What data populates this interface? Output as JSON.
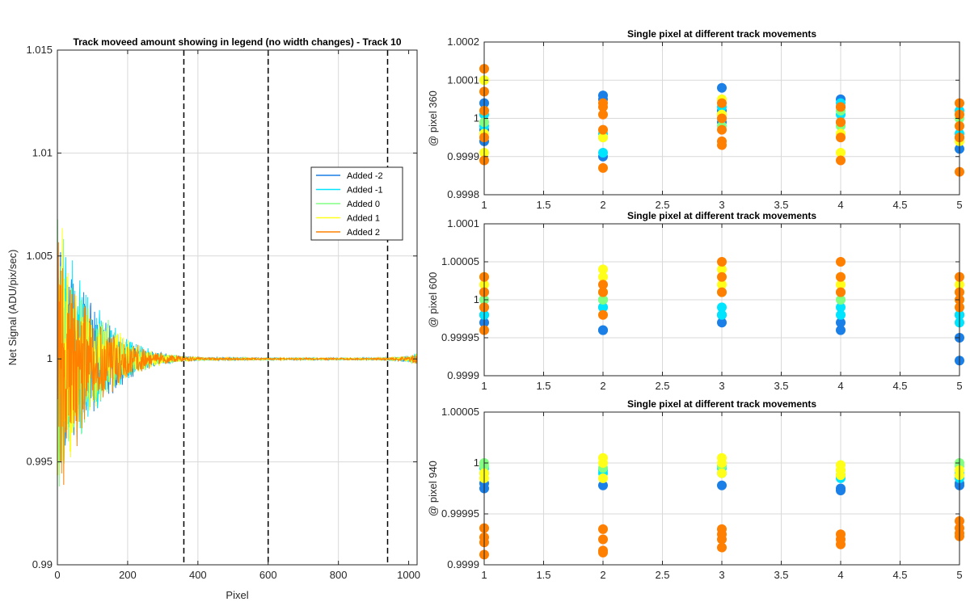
{
  "figure": {
    "background": "#ffffff",
    "grid_color": "#d9d9d9",
    "axis_color": "#262626",
    "marker_line_color": "#000000"
  },
  "series_colors": {
    "Added -2": "#1a7fe6",
    "Added -1": "#00e5ff",
    "Added 0": "#80ff80",
    "Added 1": "#ffff1a",
    "Added 2": "#ff8000"
  },
  "chart_data": [
    {
      "id": "main",
      "type": "line",
      "title": "Track moveed amount showing in legend (no width changes) - Track 10",
      "xlabel": "Pixel",
      "ylabel": "Net Signal (ADU/pix/sec)",
      "xlim": [
        0,
        1024
      ],
      "ylim": [
        0.99,
        1.015
      ],
      "xticks": [
        0,
        200,
        400,
        600,
        800,
        1000
      ],
      "xtick_labels": [
        "0",
        "200",
        "400",
        "600",
        "800",
        "1000"
      ],
      "yticks": [
        0.99,
        0.995,
        1.0,
        1.005,
        1.01,
        1.015
      ],
      "ytick_labels": [
        "0.99",
        "0.995",
        "1",
        "1.005",
        "1.01",
        "1.015"
      ],
      "grid": true,
      "legend_position": "upper-right",
      "vertical_markers": [
        360,
        600,
        940
      ],
      "envelope": {
        "x": [
          0,
          20,
          50,
          100,
          150,
          200,
          250,
          300,
          360,
          420,
          600,
          900,
          940,
          1000,
          1024
        ],
        "amplitude": [
          0.008,
          0.0062,
          0.0048,
          0.003,
          0.0019,
          0.0011,
          0.0006,
          0.0003,
          0.00015,
          8e-05,
          5e-05,
          5e-05,
          8e-05,
          0.00015,
          0.0003
        ]
      },
      "series": [
        {
          "name": "Added -2",
          "color": "#1a7fe6",
          "offset": 0.0
        },
        {
          "name": "Added -1",
          "color": "#00e5ff",
          "offset": 0.0002
        },
        {
          "name": "Added 0",
          "color": "#80ff80",
          "offset": 0.0
        },
        {
          "name": "Added 1",
          "color": "#ffff1a",
          "offset": 0.0
        },
        {
          "name": "Added 2",
          "color": "#ff8000",
          "offset": -0.0003
        }
      ]
    },
    {
      "id": "pix360",
      "type": "scatter",
      "title": "Single pixel at different track movements",
      "ylabel": "@ pixel 360",
      "xlim": [
        1,
        5
      ],
      "ylim": [
        0.9998,
        1.0002
      ],
      "xticks": [
        1,
        1.5,
        2,
        2.5,
        3,
        3.5,
        4,
        4.5,
        5
      ],
      "xtick_labels": [
        "1",
        "1.5",
        "2",
        "2.5",
        "3",
        "3.5",
        "4",
        "4.5",
        "5"
      ],
      "yticks": [
        0.9998,
        0.9999,
        1.0,
        1.0001,
        1.0002
      ],
      "ytick_labels": [
        "0.9998",
        "0.9999",
        "1",
        "1.0001",
        "1.0002"
      ],
      "grid": true,
      "series": [
        {
          "name": "Added -2",
          "color": "#1a7fe6",
          "points": [
            [
              1,
              1.00004
            ],
            [
              1,
              0.99997
            ],
            [
              1,
              0.99994
            ],
            [
              2,
              1.00006
            ],
            [
              2,
              1.00005
            ],
            [
              2,
              0.9999
            ],
            [
              3,
              1.00008
            ],
            [
              3,
              1.00002
            ],
            [
              3,
              0.99999
            ],
            [
              4,
              1.00005
            ],
            [
              4,
              1.00003
            ],
            [
              4,
              0.99999
            ],
            [
              5,
              0.99992
            ],
            [
              5,
              0.99995
            ]
          ]
        },
        {
          "name": "Added -1",
          "color": "#00e5ff",
          "points": [
            [
              1,
              0.99998
            ],
            [
              1,
              1.00001
            ],
            [
              2,
              0.99991
            ],
            [
              2,
              0.99996
            ],
            [
              3,
              1.0
            ],
            [
              3,
              1.00003
            ],
            [
              4,
              1.00001
            ],
            [
              4,
              1.00004
            ],
            [
              5,
              1.00002
            ],
            [
              5,
              0.99996
            ]
          ]
        },
        {
          "name": "Added 0",
          "color": "#80ff80",
          "points": [
            [
              1,
              0.99999
            ],
            [
              1,
              1.00002
            ],
            [
              2,
              0.99995
            ],
            [
              3,
              0.99998
            ],
            [
              3,
              1.00001
            ],
            [
              4,
              0.99998
            ],
            [
              4,
              1.00002
            ],
            [
              5,
              1.0
            ],
            [
              5,
              0.99998
            ]
          ]
        },
        {
          "name": "Added 1",
          "color": "#ffff1a",
          "points": [
            [
              1,
              1.0001
            ],
            [
              1,
              0.99991
            ],
            [
              1,
              0.99996
            ],
            [
              2,
              0.99995
            ],
            [
              3,
              1.00005
            ],
            [
              3,
              1.00001
            ],
            [
              4,
              0.99991
            ],
            [
              4,
              0.99996
            ],
            [
              5,
              0.99994
            ],
            [
              5,
              1.00001
            ]
          ]
        },
        {
          "name": "Added 2",
          "color": "#ff8000",
          "points": [
            [
              1,
              1.00013
            ],
            [
              1,
              1.00007
            ],
            [
              1,
              1.00002
            ],
            [
              1,
              0.99995
            ],
            [
              1,
              0.99989
            ],
            [
              2,
              1.00004
            ],
            [
              2,
              1.00001
            ],
            [
              2,
              0.99997
            ],
            [
              2,
              0.99987
            ],
            [
              2,
              1.00003
            ],
            [
              3,
              1.00004
            ],
            [
              3,
              1.0
            ],
            [
              3,
              0.99997
            ],
            [
              3,
              0.99994
            ],
            [
              3,
              0.99993
            ],
            [
              4,
              1.00003
            ],
            [
              4,
              0.99999
            ],
            [
              4,
              0.99995
            ],
            [
              4,
              0.99989
            ],
            [
              5,
              1.00004
            ],
            [
              5,
              1.00001
            ],
            [
              5,
              0.99998
            ],
            [
              5,
              0.99995
            ],
            [
              5,
              0.99986
            ]
          ]
        }
      ]
    },
    {
      "id": "pix600",
      "type": "scatter",
      "title": "Single pixel at different track movements",
      "ylabel": "@ pixel 600",
      "xlim": [
        1,
        5
      ],
      "ylim": [
        0.9999,
        1.0001
      ],
      "xticks": [
        1,
        1.5,
        2,
        2.5,
        3,
        3.5,
        4,
        4.5,
        5
      ],
      "xtick_labels": [
        "1",
        "1.5",
        "2",
        "2.5",
        "3",
        "3.5",
        "4",
        "4.5",
        "5"
      ],
      "yticks": [
        0.9999,
        0.99995,
        1.0,
        1.00005,
        1.0001
      ],
      "ytick_labels": [
        "0.9999",
        "0.99995",
        "1",
        "1.00005",
        "1.0001"
      ],
      "grid": true,
      "series": [
        {
          "name": "Added -2",
          "color": "#1a7fe6",
          "points": [
            [
              1,
              0.99997
            ],
            [
              1,
              0.99998
            ],
            [
              2,
              0.99996
            ],
            [
              2,
              0.99996
            ],
            [
              2,
              0.99999
            ],
            [
              3,
              0.99997
            ],
            [
              3,
              0.99998
            ],
            [
              4,
              0.99996
            ],
            [
              4,
              0.99997
            ],
            [
              5,
              0.99992
            ],
            [
              5,
              0.99995
            ],
            [
              5,
              0.99998
            ]
          ]
        },
        {
          "name": "Added -1",
          "color": "#00e5ff",
          "points": [
            [
              1,
              0.99998
            ],
            [
              1,
              0.99999
            ],
            [
              2,
              0.99999
            ],
            [
              2,
              1.0
            ],
            [
              3,
              0.99999
            ],
            [
              3,
              0.99998
            ],
            [
              4,
              0.99998
            ],
            [
              4,
              0.99999
            ],
            [
              5,
              0.99997
            ],
            [
              5,
              0.99998
            ]
          ]
        },
        {
          "name": "Added 0",
          "color": "#80ff80",
          "points": [
            [
              1,
              1.0
            ],
            [
              1,
              1.00001
            ],
            [
              2,
              1.0
            ],
            [
              2,
              1.00001
            ],
            [
              3,
              1.00001
            ],
            [
              4,
              1.0
            ],
            [
              4,
              1.00001
            ],
            [
              5,
              0.99999
            ],
            [
              5,
              1.0
            ]
          ]
        },
        {
          "name": "Added 1",
          "color": "#ffff1a",
          "points": [
            [
              1,
              1.00003
            ],
            [
              1,
              1.00002
            ],
            [
              2,
              1.00004
            ],
            [
              2,
              1.00003
            ],
            [
              2,
              1.00001
            ],
            [
              3,
              1.00004
            ],
            [
              3,
              1.00002
            ],
            [
              4,
              1.00003
            ],
            [
              4,
              1.00002
            ],
            [
              5,
              1.00001
            ],
            [
              5,
              1.00002
            ]
          ]
        },
        {
          "name": "Added 2",
          "color": "#ff8000",
          "points": [
            [
              1,
              1.00003
            ],
            [
              1,
              1.00001
            ],
            [
              1,
              0.99999
            ],
            [
              1,
              0.99996
            ],
            [
              2,
              1.00002
            ],
            [
              2,
              1.00001
            ],
            [
              2,
              0.99998
            ],
            [
              3,
              1.00005
            ],
            [
              3,
              1.00003
            ],
            [
              3,
              1.00001
            ],
            [
              4,
              1.00005
            ],
            [
              4,
              1.00003
            ],
            [
              4,
              1.00001
            ],
            [
              5,
              1.00003
            ],
            [
              5,
              1.00001
            ],
            [
              5,
              1.0
            ],
            [
              5,
              0.99999
            ]
          ]
        }
      ]
    },
    {
      "id": "pix940",
      "type": "scatter",
      "title": "Single pixel at different track movements",
      "ylabel": "@ pixel 940",
      "xlim": [
        1,
        5
      ],
      "ylim": [
        0.9999,
        1.00005
      ],
      "xticks": [
        1,
        1.5,
        2,
        2.5,
        3,
        3.5,
        4,
        4.5,
        5
      ],
      "xtick_labels": [
        "1",
        "1.5",
        "2",
        "2.5",
        "3",
        "3.5",
        "4",
        "4.5",
        "5"
      ],
      "yticks": [
        0.9999,
        0.99995,
        1.0,
        1.00005
      ],
      "ytick_labels": [
        "0.9999",
        "0.99995",
        "1",
        "1.00005"
      ],
      "grid": true,
      "series": [
        {
          "name": "Added -2",
          "color": "#1a7fe6",
          "points": [
            [
              1,
              0.99998
            ],
            [
              1,
              0.999975
            ],
            [
              2,
              0.999978
            ],
            [
              3,
              0.999978
            ],
            [
              4,
              0.999973
            ],
            [
              4,
              0.999975
            ],
            [
              5,
              0.999978
            ],
            [
              5,
              0.99998
            ]
          ]
        },
        {
          "name": "Added -1",
          "color": "#00e5ff",
          "points": [
            [
              1,
              0.99999
            ],
            [
              1,
              0.999995
            ],
            [
              2,
              0.99999
            ],
            [
              2,
              0.999993
            ],
            [
              3,
              0.999995
            ],
            [
              3,
              0.99999
            ],
            [
              4,
              0.999985
            ],
            [
              4,
              0.999988
            ],
            [
              5,
              0.99999
            ],
            [
              5,
              0.999985
            ]
          ]
        },
        {
          "name": "Added 0",
          "color": "#80ff80",
          "points": [
            [
              1,
              1.0
            ],
            [
              1,
              0.999997
            ],
            [
              2,
              0.999995
            ],
            [
              3,
              0.999997
            ],
            [
              4,
              0.999993
            ],
            [
              5,
              0.999997
            ],
            [
              5,
              1.0
            ]
          ]
        },
        {
          "name": "Added 1",
          "color": "#ffff1a",
          "points": [
            [
              1,
              0.999985
            ],
            [
              1,
              0.99999
            ],
            [
              2,
              1.000005
            ],
            [
              2,
              1.0
            ],
            [
              2,
              0.999985
            ],
            [
              3,
              1.000005
            ],
            [
              3,
              1.0
            ],
            [
              3,
              0.99999
            ],
            [
              4,
              0.999998
            ],
            [
              4,
              0.999993
            ],
            [
              4,
              0.999988
            ],
            [
              5,
              0.999993
            ],
            [
              5,
              0.999988
            ]
          ]
        },
        {
          "name": "Added 2",
          "color": "#ff8000",
          "points": [
            [
              1,
              0.999936
            ],
            [
              1,
              0.999927
            ],
            [
              1,
              0.999922
            ],
            [
              1,
              0.99991
            ],
            [
              2,
              0.999935
            ],
            [
              2,
              0.999925
            ],
            [
              2,
              0.999914
            ],
            [
              2,
              0.999912
            ],
            [
              3,
              0.999935
            ],
            [
              3,
              0.99993
            ],
            [
              3,
              0.999925
            ],
            [
              3,
              0.999917
            ],
            [
              4,
              0.99993
            ],
            [
              4,
              0.999925
            ],
            [
              4,
              0.99992
            ],
            [
              5,
              0.999943
            ],
            [
              5,
              0.999936
            ],
            [
              5,
              0.999931
            ],
            [
              5,
              0.999928
            ]
          ]
        }
      ]
    }
  ]
}
